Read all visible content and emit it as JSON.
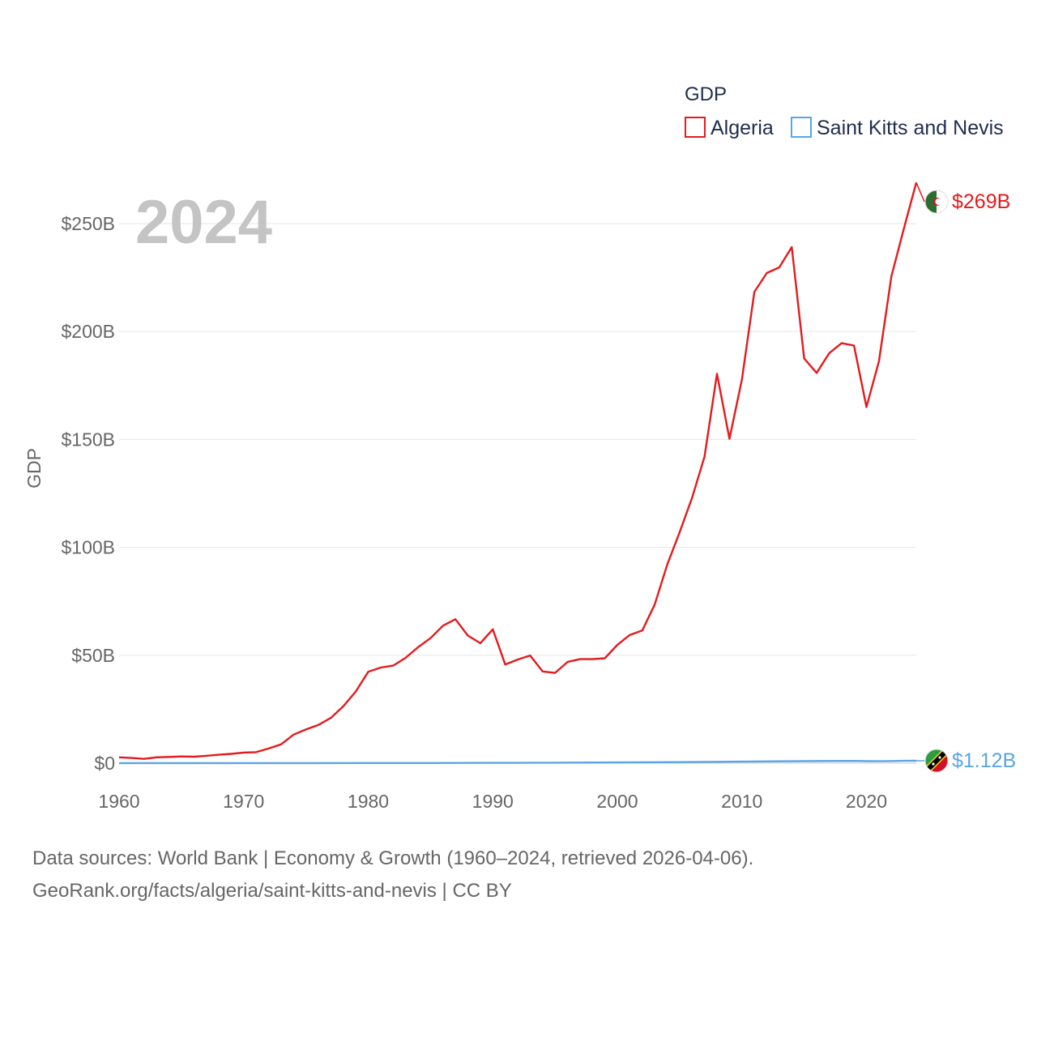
{
  "chart_data": {
    "type": "line",
    "current_year_label": "2024",
    "ylabel": "GDP",
    "legend_title": "GDP",
    "legend_position": "top-right",
    "xlim": [
      1960,
      2024
    ],
    "ylim": [
      0,
      265
    ],
    "x_ticks": [
      1960,
      1970,
      1980,
      1990,
      2000,
      2010,
      2020
    ],
    "x_tick_labels": [
      "1960",
      "1970",
      "1980",
      "1990",
      "2000",
      "2010",
      "2020"
    ],
    "y_ticks": [
      0,
      50,
      100,
      150,
      200,
      250
    ],
    "y_tick_labels": [
      "$0",
      "$50B",
      "$100B",
      "$150B",
      "$200B",
      "$250B"
    ],
    "grid": true,
    "series": [
      {
        "name": "Algeria",
        "color": "#e41a1c",
        "end_label": "$269B",
        "flag_colors": [
          "#2e6b2e",
          "#ffffff",
          "#d21034"
        ],
        "x": [
          1960,
          1961,
          1962,
          1963,
          1964,
          1965,
          1966,
          1967,
          1968,
          1969,
          1970,
          1971,
          1972,
          1973,
          1974,
          1975,
          1976,
          1977,
          1978,
          1979,
          1980,
          1981,
          1982,
          1983,
          1984,
          1985,
          1986,
          1987,
          1988,
          1989,
          1990,
          1991,
          1992,
          1993,
          1994,
          1995,
          1996,
          1997,
          1998,
          1999,
          2000,
          2001,
          2002,
          2003,
          2004,
          2005,
          2006,
          2007,
          2008,
          2009,
          2010,
          2011,
          2012,
          2013,
          2014,
          2015,
          2016,
          2017,
          2018,
          2019,
          2020,
          2021,
          2022,
          2023,
          2024
        ],
        "values": [
          2.7,
          2.4,
          2.0,
          2.7,
          2.9,
          3.1,
          3.0,
          3.4,
          3.9,
          4.3,
          4.9,
          5.1,
          6.8,
          8.7,
          13.2,
          15.6,
          17.7,
          21.0,
          26.4,
          33.2,
          42.3,
          44.3,
          45.2,
          48.8,
          53.7,
          57.9,
          63.7,
          66.7,
          59.1,
          55.6,
          62.0,
          45.7,
          48.0,
          49.9,
          42.5,
          41.8,
          46.9,
          48.2,
          48.2,
          48.6,
          54.8,
          59.4,
          61.5,
          73.5,
          91.9,
          107.0,
          123.0,
          142.0,
          180.4,
          150.3,
          177.8,
          218.3,
          227.1,
          229.7,
          239.1,
          187.5,
          180.8,
          189.9,
          194.6,
          193.5,
          165.0,
          186.2,
          225.6,
          247.6,
          269.0
        ]
      },
      {
        "name": "Saint Kitts and Nevis",
        "color": "#5aa5e6",
        "end_label": "$1.12B",
        "flag_colors": [
          "#2e9c40",
          "#fcd116",
          "#000000",
          "#ce1126"
        ],
        "x": [
          1960,
          1965,
          1970,
          1975,
          1980,
          1985,
          1990,
          1995,
          2000,
          2005,
          2010,
          2015,
          2019,
          2020,
          2021,
          2022,
          2023,
          2024
        ],
        "values": [
          0.02,
          0.02,
          0.03,
          0.05,
          0.06,
          0.08,
          0.16,
          0.23,
          0.35,
          0.5,
          0.7,
          0.92,
          1.06,
          0.93,
          0.9,
          0.98,
          1.08,
          1.12
        ]
      }
    ]
  },
  "footer": {
    "line1": "Data sources: World Bank | Economy & Growth (1960–2024, retrieved 2026-04-06).",
    "line2": "GeoRank.org/facts/algeria/saint-kitts-and-nevis | CC BY"
  }
}
